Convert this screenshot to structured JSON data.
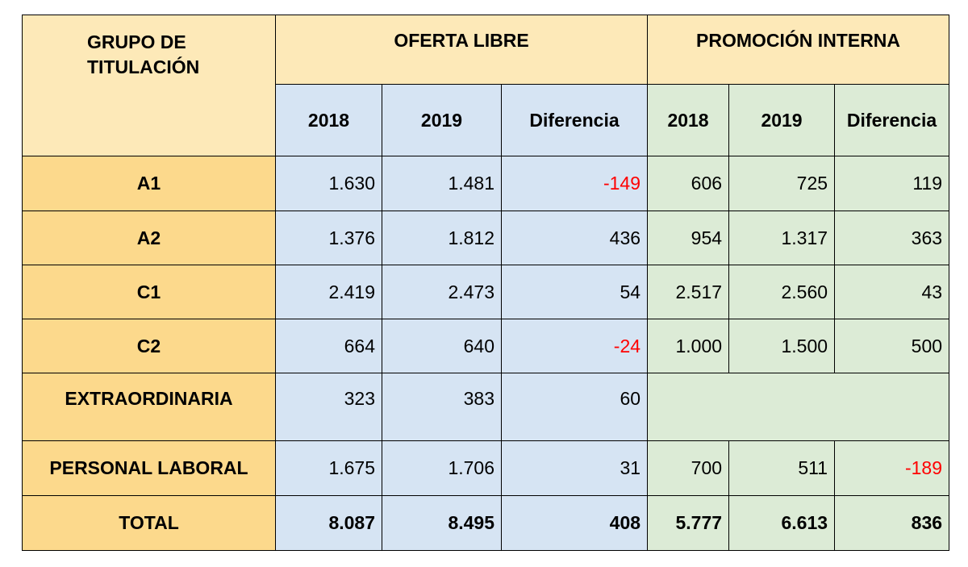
{
  "header": {
    "grupo_line1": "GRUPO DE",
    "grupo_line2": "TITULACIÓN",
    "oferta_libre": "OFERTA LIBRE",
    "promocion_interna": "PROMOCIÓN INTERNA",
    "sub": [
      "2018",
      "2019",
      "Diferencia",
      "2018",
      "2019",
      "Diferencia"
    ]
  },
  "rows": [
    {
      "label": "A1",
      "ol_2018": "1.630",
      "ol_2019": "1.481",
      "ol_diff": "-149",
      "pi_2018": "606",
      "pi_2019": "725",
      "pi_diff": "119"
    },
    {
      "label": "A2",
      "ol_2018": "1.376",
      "ol_2019": "1.812",
      "ol_diff": "436",
      "pi_2018": "954",
      "pi_2019": "1.317",
      "pi_diff": "363"
    },
    {
      "label": "C1",
      "ol_2018": "2.419",
      "ol_2019": "2.473",
      "ol_diff": "54",
      "pi_2018": "2.517",
      "pi_2019": "2.560",
      "pi_diff": "43"
    },
    {
      "label": "C2",
      "ol_2018": "664",
      "ol_2019": "640",
      "ol_diff": "-24",
      "pi_2018": "1.000",
      "pi_2019": "1.500",
      "pi_diff": "500"
    },
    {
      "label": "EXTRAORDINARIA",
      "ol_2018": "323",
      "ol_2019": "383",
      "ol_diff": "60"
    },
    {
      "label": "PERSONAL LABORAL",
      "ol_2018": "1.675",
      "ol_2019": "1.706",
      "ol_diff": "31",
      "pi_2018": "700",
      "pi_2019": "511",
      "pi_diff": "-189"
    },
    {
      "label": "TOTAL",
      "ol_2018": "8.087",
      "ol_2019": "8.495",
      "ol_diff": "408",
      "pi_2018": "5.777",
      "pi_2019": "6.613",
      "pi_diff": "836"
    }
  ],
  "colors": {
    "header_yellow": "#fde9b8",
    "label_yellow": "#fcd98c",
    "oferta_blue": "#d6e4f3",
    "promocion_green": "#dcebd6",
    "negative_red": "#ff0000"
  }
}
